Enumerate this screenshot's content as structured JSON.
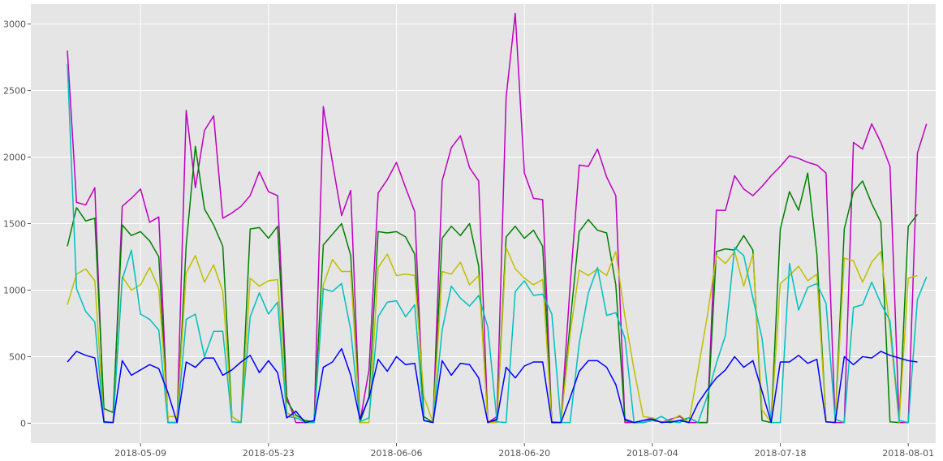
{
  "chart_data": {
    "type": "line",
    "title": "",
    "xlabel": "",
    "ylabel": "",
    "grid": true,
    "legend": "none",
    "x_start": "2018-05-01",
    "x_end": "2018-07-31",
    "xlim": [
      "2018-04-27",
      "2018-08-04"
    ],
    "ylim": [
      -150,
      3150
    ],
    "x_ticks": [
      {
        "date": "2018-05-09",
        "label": "2018-05-09"
      },
      {
        "date": "2018-05-23",
        "label": "2018-05-23"
      },
      {
        "date": "2018-06-06",
        "label": "2018-06-06"
      },
      {
        "date": "2018-06-20",
        "label": "2018-06-20"
      },
      {
        "date": "2018-07-04",
        "label": "2018-07-04"
      },
      {
        "date": "2018-07-18",
        "label": "2018-07-18"
      },
      {
        "date": "2018-08-01",
        "label": "2018-08-01"
      }
    ],
    "y_ticks": [
      0,
      500,
      1000,
      1500,
      2000,
      2500,
      3000
    ],
    "colors": {
      "background": "#e5e5e5",
      "grid": "#ffffff",
      "tick": "#555555"
    },
    "series": [
      {
        "color": "#bf00bf",
        "values": [
          2800,
          1660,
          1640,
          1770,
          10,
          5,
          1630,
          1690,
          1760,
          1510,
          1550,
          5,
          5,
          2350,
          1770,
          2200,
          2310,
          1540,
          1580,
          1630,
          1710,
          1890,
          1740,
          1710,
          200,
          5,
          5,
          5,
          2380,
          1960,
          1560,
          1750,
          5,
          400,
          1730,
          1830,
          1960,
          1770,
          1590,
          20,
          5,
          1820,
          2070,
          2160,
          1920,
          1820,
          5,
          50,
          2450,
          3080,
          1880,
          1690,
          1680,
          5,
          5,
          1030,
          1940,
          1930,
          2060,
          1850,
          1710,
          5,
          5,
          20,
          40,
          5,
          30,
          50,
          5,
          5,
          5,
          1600,
          1600,
          1860,
          1760,
          1710,
          1780,
          1860,
          1930,
          2010,
          1990,
          1960,
          1940,
          1880,
          5,
          5,
          2110,
          2060,
          2250,
          2110,
          1930,
          5,
          5,
          2030,
          2250
        ]
      },
      {
        "color": "#008000",
        "values": [
          1330,
          1620,
          1520,
          1540,
          110,
          80,
          1490,
          1410,
          1440,
          1370,
          1250,
          5,
          5,
          1340,
          2080,
          1610,
          1490,
          1330,
          50,
          5,
          1460,
          1470,
          1390,
          1480,
          170,
          60,
          20,
          10,
          1340,
          1420,
          1500,
          1260,
          5,
          200,
          1440,
          1430,
          1440,
          1400,
          1270,
          50,
          5,
          1390,
          1480,
          1410,
          1500,
          1180,
          5,
          20,
          1400,
          1480,
          1390,
          1450,
          1330,
          10,
          5,
          750,
          1440,
          1530,
          1450,
          1430,
          1040,
          20,
          5,
          5,
          20,
          10,
          5,
          20,
          40,
          5,
          5,
          1290,
          1310,
          1300,
          1410,
          1300,
          20,
          5,
          1460,
          1740,
          1600,
          1880,
          1270,
          10,
          5,
          1460,
          1740,
          1820,
          1650,
          1510,
          10,
          5,
          1480,
          1570
        ]
      },
      {
        "color": "#bfbf00",
        "values": [
          890,
          1120,
          1160,
          1070,
          10,
          5,
          1100,
          1000,
          1040,
          1170,
          1010,
          50,
          50,
          1130,
          1260,
          1060,
          1190,
          990,
          50,
          5,
          1090,
          1030,
          1070,
          1080,
          80,
          40,
          5,
          5,
          1040,
          1230,
          1140,
          1140,
          5,
          5,
          1170,
          1270,
          1110,
          1120,
          1110,
          200,
          5,
          1140,
          1120,
          1210,
          1040,
          1110,
          5,
          5,
          1320,
          1160,
          1090,
          1040,
          1080,
          5,
          5,
          670,
          1150,
          1110,
          1160,
          1110,
          1290,
          800,
          400,
          50,
          40,
          5,
          20,
          60,
          5,
          400,
          800,
          1260,
          1200,
          1290,
          1030,
          1270,
          100,
          5,
          1050,
          1110,
          1180,
          1070,
          1120,
          10,
          5,
          1240,
          1220,
          1060,
          1210,
          1290,
          700,
          5,
          1090,
          1110
        ]
      },
      {
        "color": "#00bfbf",
        "values": [
          2700,
          1010,
          840,
          760,
          5,
          5,
          1080,
          1300,
          820,
          780,
          700,
          5,
          5,
          780,
          820,
          500,
          690,
          690,
          10,
          5,
          800,
          980,
          820,
          910,
          50,
          40,
          10,
          5,
          1010,
          990,
          1050,
          700,
          10,
          40,
          800,
          910,
          920,
          800,
          890,
          20,
          5,
          700,
          1030,
          940,
          880,
          960,
          720,
          10,
          5,
          990,
          1070,
          960,
          970,
          820,
          5,
          5,
          600,
          980,
          1170,
          810,
          830,
          640,
          5,
          5,
          20,
          50,
          10,
          5,
          40,
          5,
          200,
          450,
          660,
          1320,
          1260,
          940,
          640,
          5,
          5,
          1200,
          850,
          1020,
          1050,
          900,
          30,
          5,
          870,
          890,
          1060,
          900,
          770,
          20,
          5,
          930,
          1100
        ]
      },
      {
        "color": "#0000ff",
        "values": [
          460,
          540,
          510,
          490,
          10,
          5,
          470,
          360,
          400,
          440,
          410,
          230,
          5,
          460,
          420,
          490,
          490,
          360,
          400,
          460,
          510,
          380,
          470,
          380,
          40,
          90,
          5,
          20,
          420,
          460,
          560,
          360,
          30,
          190,
          480,
          390,
          500,
          440,
          450,
          20,
          5,
          470,
          360,
          450,
          440,
          340,
          5,
          30,
          420,
          340,
          430,
          460,
          460,
          5,
          5,
          190,
          390,
          470,
          470,
          420,
          290,
          30,
          5,
          20,
          30,
          5,
          10,
          20,
          5,
          150,
          250,
          340,
          400,
          500,
          420,
          470,
          240,
          5,
          460,
          460,
          510,
          450,
          480,
          10,
          5,
          500,
          440,
          500,
          490,
          540,
          510,
          490,
          470,
          460
        ]
      }
    ]
  }
}
